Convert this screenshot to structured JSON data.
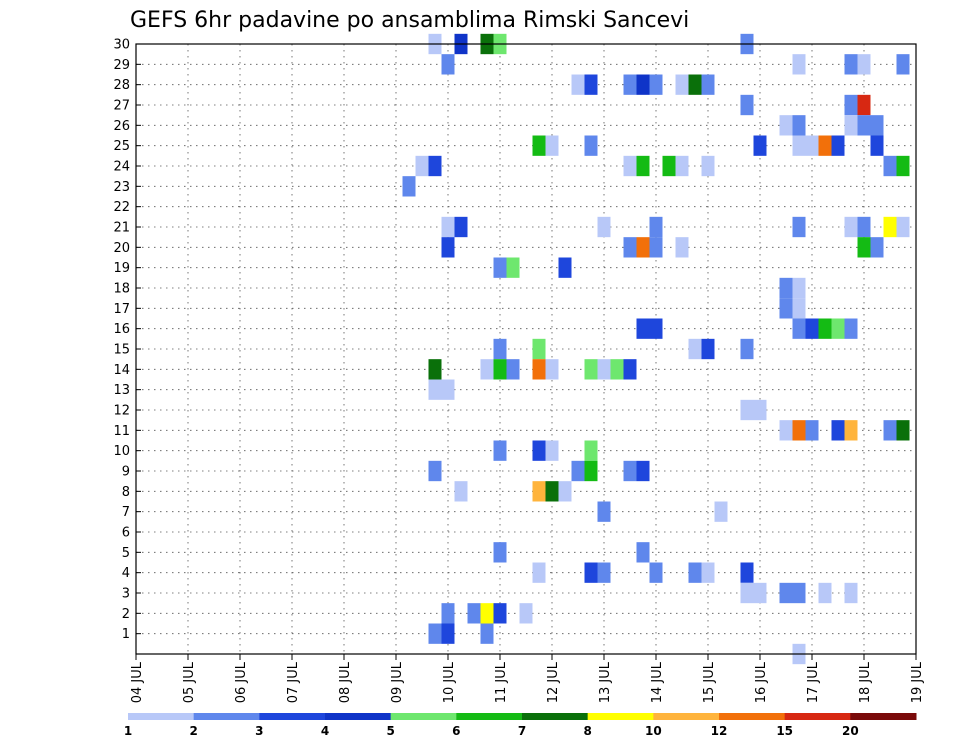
{
  "chart_data": {
    "type": "heatmap",
    "title": "GEFS 6hr padavine po ansamblima Rimski Sancevi",
    "x_tick_labels": [
      "04 JUL",
      "05 JUL",
      "06 JUL",
      "07 JUL",
      "08 JUL",
      "09 JUL",
      "10 JUL",
      "11 JUL",
      "12 JUL",
      "13 JUL",
      "14 JUL",
      "15 JUL",
      "16 JUL",
      "17 JUL",
      "18 JUL",
      "19 JUL"
    ],
    "y_tick_labels": [
      "1",
      "2",
      "3",
      "4",
      "5",
      "6",
      "7",
      "8",
      "9",
      "10",
      "11",
      "12",
      "13",
      "14",
      "15",
      "16",
      "17",
      "18",
      "19",
      "20",
      "21",
      "22",
      "23",
      "24",
      "25",
      "26",
      "27",
      "28",
      "29",
      "30"
    ],
    "xlim_days": [
      0,
      15
    ],
    "ylim_members": [
      0,
      30
    ],
    "step_days": 0.25,
    "grid": "dotted",
    "colorbar": {
      "position": "bottom",
      "labels": [
        "1",
        "2",
        "3",
        "4",
        "5",
        "6",
        "7",
        "8",
        "10",
        "12",
        "15",
        "20"
      ],
      "colors": [
        "#b8c8f8",
        "#5f87ec",
        "#1e46dc",
        "#0f34c8",
        "#6ee76e",
        "#14bb14",
        "#0a700a",
        "#ffff00",
        "#ffb43c",
        "#f2700a",
        "#d72812",
        "#7a0a0a"
      ]
    },
    "cells": [
      [
        5.75,
        30,
        1
      ],
      [
        6.25,
        30,
        4
      ],
      [
        6.75,
        30,
        7
      ],
      [
        7.0,
        30,
        5
      ],
      [
        11.75,
        30,
        2
      ],
      [
        6.0,
        29,
        2
      ],
      [
        12.75,
        29,
        1
      ],
      [
        13.75,
        29,
        2
      ],
      [
        14.0,
        29,
        1
      ],
      [
        14.75,
        29,
        2
      ],
      [
        8.5,
        28,
        1
      ],
      [
        8.75,
        28,
        3
      ],
      [
        9.5,
        28,
        2
      ],
      [
        9.75,
        28,
        4
      ],
      [
        10.0,
        28,
        2
      ],
      [
        10.5,
        28,
        1
      ],
      [
        10.75,
        28,
        7
      ],
      [
        11.0,
        28,
        2
      ],
      [
        11.75,
        27,
        2
      ],
      [
        13.75,
        27,
        2
      ],
      [
        14.0,
        27,
        15
      ],
      [
        12.5,
        26,
        1
      ],
      [
        12.75,
        26,
        2
      ],
      [
        13.75,
        26,
        1
      ],
      [
        14.0,
        26,
        2
      ],
      [
        14.25,
        26,
        2
      ],
      [
        7.75,
        25,
        6
      ],
      [
        8.0,
        25,
        1
      ],
      [
        8.75,
        25,
        2
      ],
      [
        12.0,
        25,
        3
      ],
      [
        12.75,
        25,
        1
      ],
      [
        13.0,
        25,
        1
      ],
      [
        13.25,
        25,
        12
      ],
      [
        13.5,
        25,
        3
      ],
      [
        14.25,
        25,
        3
      ],
      [
        5.5,
        24,
        1
      ],
      [
        5.75,
        24,
        3
      ],
      [
        9.5,
        24,
        1
      ],
      [
        9.75,
        24,
        6
      ],
      [
        10.25,
        24,
        6
      ],
      [
        10.5,
        24,
        1
      ],
      [
        11.0,
        24,
        1
      ],
      [
        14.5,
        24,
        2
      ],
      [
        14.75,
        24,
        6
      ],
      [
        5.25,
        23,
        2
      ],
      [
        6.0,
        21,
        1
      ],
      [
        6.25,
        21,
        3
      ],
      [
        9.0,
        21,
        1
      ],
      [
        10.0,
        21,
        2
      ],
      [
        12.75,
        21,
        2
      ],
      [
        13.75,
        21,
        1
      ],
      [
        14.0,
        21,
        2
      ],
      [
        14.5,
        21,
        8
      ],
      [
        14.75,
        21,
        1
      ],
      [
        6.0,
        20,
        3
      ],
      [
        9.5,
        20,
        2
      ],
      [
        9.75,
        20,
        12
      ],
      [
        10.0,
        20,
        2
      ],
      [
        10.5,
        20,
        1
      ],
      [
        14.0,
        20,
        6
      ],
      [
        14.25,
        20,
        2
      ],
      [
        7.0,
        19,
        2
      ],
      [
        7.25,
        19,
        5
      ],
      [
        8.25,
        19,
        3
      ],
      [
        12.5,
        18,
        2
      ],
      [
        12.75,
        18,
        1
      ],
      [
        12.5,
        17,
        2
      ],
      [
        12.75,
        17,
        1
      ],
      [
        9.75,
        16,
        3
      ],
      [
        10.0,
        16,
        3
      ],
      [
        12.75,
        16,
        2
      ],
      [
        13.0,
        16,
        3
      ],
      [
        13.25,
        16,
        6
      ],
      [
        13.5,
        16,
        5
      ],
      [
        13.75,
        16,
        2
      ],
      [
        7.0,
        15,
        2
      ],
      [
        7.75,
        15,
        5
      ],
      [
        10.75,
        15,
        1
      ],
      [
        11.0,
        15,
        3
      ],
      [
        11.75,
        15,
        2
      ],
      [
        5.75,
        14,
        7
      ],
      [
        6.75,
        14,
        1
      ],
      [
        7.0,
        14,
        6
      ],
      [
        7.25,
        14,
        2
      ],
      [
        7.75,
        14,
        12
      ],
      [
        8.0,
        14,
        1
      ],
      [
        8.75,
        14,
        5
      ],
      [
        9.0,
        14,
        1
      ],
      [
        9.25,
        14,
        5
      ],
      [
        9.5,
        14,
        3
      ],
      [
        5.75,
        13,
        1
      ],
      [
        6.0,
        13,
        1
      ],
      [
        11.75,
        12,
        1
      ],
      [
        12.0,
        12,
        1
      ],
      [
        12.5,
        11,
        1
      ],
      [
        12.75,
        11,
        12
      ],
      [
        13.0,
        11,
        2
      ],
      [
        13.5,
        11,
        3
      ],
      [
        13.75,
        11,
        10
      ],
      [
        14.5,
        11,
        2
      ],
      [
        14.75,
        11,
        7
      ],
      [
        7.0,
        10,
        2
      ],
      [
        7.75,
        10,
        3
      ],
      [
        8.0,
        10,
        1
      ],
      [
        8.75,
        10,
        5
      ],
      [
        5.75,
        9,
        2
      ],
      [
        8.5,
        9,
        2
      ],
      [
        8.75,
        9,
        6
      ],
      [
        9.5,
        9,
        2
      ],
      [
        9.75,
        9,
        3
      ],
      [
        6.25,
        8,
        1
      ],
      [
        7.75,
        8,
        10
      ],
      [
        8.0,
        8,
        7
      ],
      [
        8.25,
        8,
        1
      ],
      [
        9.0,
        7,
        2
      ],
      [
        11.25,
        7,
        1
      ],
      [
        7.0,
        5,
        2
      ],
      [
        9.75,
        5,
        2
      ],
      [
        7.75,
        4,
        1
      ],
      [
        8.75,
        4,
        3
      ],
      [
        9.0,
        4,
        2
      ],
      [
        10.0,
        4,
        2
      ],
      [
        10.75,
        4,
        2
      ],
      [
        11.0,
        4,
        1
      ],
      [
        11.75,
        4,
        3
      ],
      [
        11.75,
        3,
        1
      ],
      [
        12.0,
        3,
        1
      ],
      [
        12.5,
        3,
        2
      ],
      [
        12.75,
        3,
        2
      ],
      [
        13.25,
        3,
        1
      ],
      [
        13.75,
        3,
        1
      ],
      [
        6.0,
        2,
        2
      ],
      [
        6.5,
        2,
        2
      ],
      [
        6.75,
        2,
        8
      ],
      [
        7.0,
        2,
        3
      ],
      [
        7.5,
        2,
        1
      ],
      [
        5.75,
        1,
        2
      ],
      [
        6.0,
        1,
        3
      ],
      [
        6.75,
        1,
        2
      ],
      [
        12.75,
        0,
        1
      ]
    ]
  }
}
